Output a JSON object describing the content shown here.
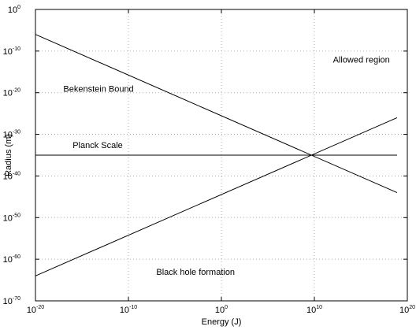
{
  "chart_data": {
    "type": "line",
    "xlabel": "Energy (J)",
    "ylabel": "Radius (m)",
    "x_scale": "log",
    "y_scale": "log",
    "xlim": [
      1e-20,
      1e+20
    ],
    "ylim": [
      1e-70,
      1.0
    ],
    "grid": true,
    "x_ticks": [
      {
        "base": "10",
        "exp": "-20"
      },
      {
        "base": "10",
        "exp": "-10"
      },
      {
        "base": "10",
        "exp": "0"
      },
      {
        "base": "10",
        "exp": "10"
      },
      {
        "base": "10",
        "exp": "20"
      }
    ],
    "y_ticks": [
      {
        "base": "10",
        "exp": "-70"
      },
      {
        "base": "10",
        "exp": "-60"
      },
      {
        "base": "10",
        "exp": "-50"
      },
      {
        "base": "10",
        "exp": "-40"
      },
      {
        "base": "10",
        "exp": "-30"
      },
      {
        "base": "10",
        "exp": "-20"
      },
      {
        "base": "10",
        "exp": "-10"
      },
      {
        "base": "10",
        "exp": "0"
      }
    ],
    "series": [
      {
        "x": [
          1e-20,
          7.9e+18
        ],
        "y": [
          1e-06,
          1e-44
        ]
      },
      {
        "x": [
          1e-20,
          7.9e+18
        ],
        "y": [
          1e-35,
          1e-35
        ]
      },
      {
        "x": [
          1e-20,
          7.9e+18
        ],
        "y": [
          1e-64,
          1e-26
        ]
      }
    ],
    "annotations": [
      {
        "text": "Allowed region",
        "x": 1000000000000.0,
        "y": 1e-12
      },
      {
        "text": "Bekenstein Bound",
        "x": 1e-17,
        "y": 1e-19
      },
      {
        "text": "Planck Scale",
        "x": 1e-16,
        "y": 3e-33
      },
      {
        "text": "Black hole formation",
        "x": 1e-07,
        "y": 1e-63
      }
    ]
  }
}
